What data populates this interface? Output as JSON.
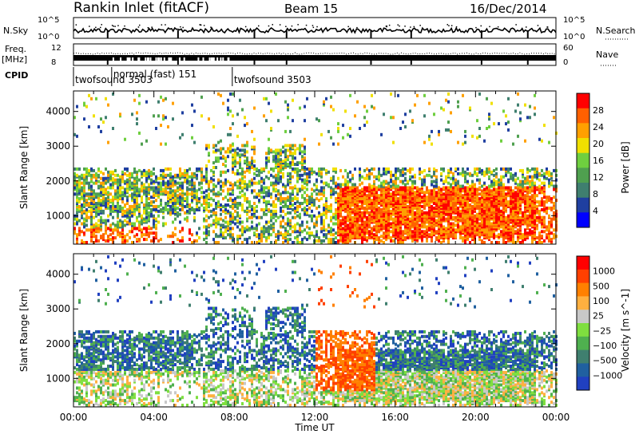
{
  "header": {
    "station": "Rankin Inlet (fitACF)",
    "beam": "Beam 15",
    "date": "16/Dec/2014"
  },
  "top_panels": {
    "nsky_label": "N.Sky",
    "nsky_ticks": [
      "10^5",
      "10^0"
    ],
    "nsearch_label": "N.Search",
    "nsearch_ticks": [
      "10^5",
      "10^0"
    ],
    "freq_label_line1": "Freq.",
    "freq_label_line2": "[MHz]",
    "freq_ticks": [
      "12",
      "8"
    ],
    "nave_label": "Nave",
    "nave_ticks": [
      "60",
      "0"
    ],
    "cpid_label": "CPID",
    "cpid_modes": [
      {
        "name": "twofsound 3503",
        "start": 0.0,
        "end": 1.9
      },
      {
        "name": "normal (fast) 151",
        "start": 1.9,
        "end": 7.9
      },
      {
        "name": "twofsound 3503",
        "start": 7.9,
        "end": 24.0
      }
    ]
  },
  "chart_data": [
    {
      "type": "heatmap",
      "name": "power",
      "ylabel": "Slant Range [km]",
      "yticks": [
        1000,
        2000,
        3000,
        4000
      ],
      "ylim": [
        180,
        4590
      ],
      "xlim": [
        0,
        24
      ],
      "colorbar_label": "Power [dB]",
      "colorbar_ticks": [
        "28",
        "24",
        "20",
        "16",
        "12",
        "8",
        "4"
      ],
      "colorbar_values": [
        28,
        24,
        20,
        16,
        12,
        8,
        4
      ],
      "colorbar_range": [
        0,
        32
      ],
      "colors": [
        "#0000ff",
        "#1f3fa0",
        "#3f7f6f",
        "#4fa04f",
        "#6fcf3f",
        "#f0e000",
        "#ffa000",
        "#ff6000",
        "#ff0000"
      ]
    },
    {
      "type": "heatmap",
      "name": "velocity",
      "ylabel": "Slant Range [km]",
      "yticks": [
        1000,
        2000,
        3000,
        4000
      ],
      "ylim": [
        180,
        4590
      ],
      "xlim": [
        0,
        24
      ],
      "xticks": [
        "00:00",
        "04:00",
        "08:00",
        "12:00",
        "16:00",
        "20:00",
        "00:00"
      ],
      "xlabel": "Time UT",
      "colorbar_label": "Velocity [m s^-1]",
      "colorbar_ticks": [
        "1000",
        "500",
        "100",
        "25",
        "−25",
        "−100",
        "−500",
        "−1000"
      ],
      "colors": [
        "#2040c0",
        "#2060a0",
        "#3f7f6f",
        "#4fb04f",
        "#7fdf3f",
        "#c8c8c8",
        "#ffb040",
        "#ff8000",
        "#ff4000",
        "#ff0000"
      ]
    }
  ]
}
